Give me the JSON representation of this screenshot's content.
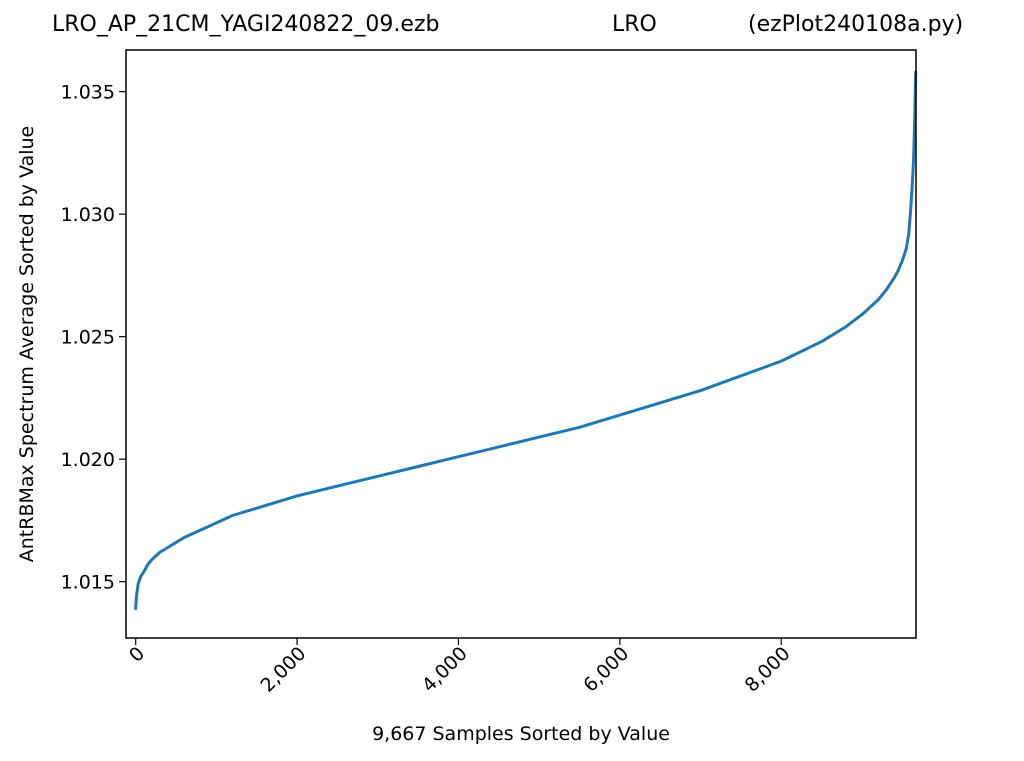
{
  "titles": {
    "left": "LRO_AP_21CM_YAGI240822_09.ezb",
    "center": "LRO",
    "right": "(ezPlot240108a.py)"
  },
  "chart_data": {
    "type": "line",
    "xlabel": "9,667 Samples Sorted by Value",
    "ylabel": "AntRBMax Spectrum Average Sorted by Value",
    "xlim": [
      -120,
      9670
    ],
    "ylim": [
      1.0127,
      1.0367
    ],
    "x_ticks": [
      0,
      2000,
      4000,
      6000,
      8000
    ],
    "x_tick_labels": [
      "0",
      "2,000",
      "4,000",
      "6,000",
      "8,000"
    ],
    "y_ticks": [
      1.015,
      1.02,
      1.025,
      1.03,
      1.035
    ],
    "y_tick_labels": [
      "1.015",
      "1.020",
      "1.025",
      "1.030",
      "1.035"
    ],
    "grid": false,
    "line_color": "#1f77b4",
    "series": [
      {
        "x": [
          0,
          10,
          30,
          60,
          100,
          150,
          200,
          300,
          400,
          500,
          600,
          800,
          1000,
          1200,
          1500,
          2000,
          2500,
          3000,
          3500,
          4000,
          4500,
          5000,
          5500,
          6000,
          6500,
          7000,
          7500,
          8000,
          8500,
          8800,
          9000,
          9200,
          9300,
          9400,
          9450,
          9500,
          9550,
          9580,
          9600,
          9620,
          9640,
          9655,
          9666
        ],
        "y": [
          1.0139,
          1.0144,
          1.0149,
          1.0152,
          1.0154,
          1.0157,
          1.0159,
          1.0162,
          1.0164,
          1.0166,
          1.0168,
          1.0171,
          1.0174,
          1.0177,
          1.018,
          1.0185,
          1.0189,
          1.0193,
          1.0197,
          1.0201,
          1.0205,
          1.0209,
          1.0213,
          1.0218,
          1.0223,
          1.0228,
          1.0234,
          1.024,
          1.0248,
          1.0254,
          1.0259,
          1.0265,
          1.0269,
          1.0274,
          1.0277,
          1.0281,
          1.0286,
          1.0292,
          1.03,
          1.031,
          1.0322,
          1.034,
          1.0358
        ]
      }
    ]
  }
}
